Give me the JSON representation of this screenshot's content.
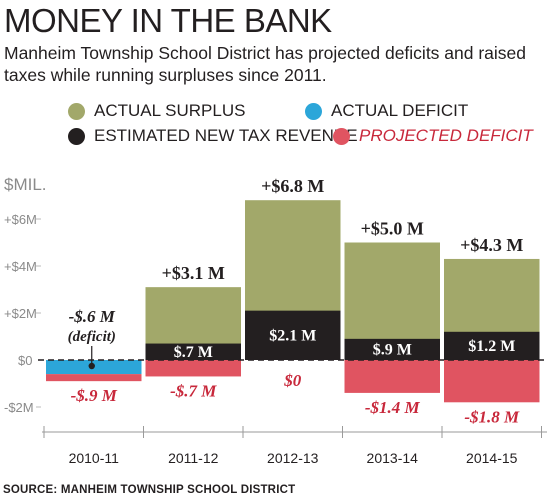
{
  "chart_data": {
    "type": "bar",
    "title": "MONEY IN THE BANK",
    "subtitle": "Manheim Township School District has projected deficits and raised taxes while running surpluses since 2011.",
    "ylabel": "$MIL.",
    "ylim": [
      -2.5,
      7.5
    ],
    "yticks": [
      {
        "value": 6,
        "label": "+$6M"
      },
      {
        "value": 4,
        "label": "+$4M"
      },
      {
        "value": 2,
        "label": "+$2M"
      },
      {
        "value": 0,
        "label": "$0"
      },
      {
        "value": -2,
        "label": "-$2M"
      }
    ],
    "categories": [
      "2010-11",
      "2011-12",
      "2012-13",
      "2013-14",
      "2014-15"
    ],
    "legend": [
      {
        "key": "actual_surplus",
        "label": "ACTUAL SURPLUS",
        "color": "#a2a86a"
      },
      {
        "key": "actual_deficit",
        "label": "ACTUAL DEFICIT",
        "color": "#2ca6d9"
      },
      {
        "key": "estimated_new_tax_revenue",
        "label": "ESTIMATED NEW TAX REVENUE",
        "color": "#231f20"
      },
      {
        "key": "projected_deficit",
        "label": "PROJECTED DEFICIT",
        "color": "#e05461"
      }
    ],
    "bars": [
      {
        "category": "2010-11",
        "actual": -0.6,
        "new_tax_revenue": 0,
        "projected_deficit": -0.9,
        "actual_label": "-$.6 M",
        "actual_note": "(deficit)",
        "tax_label": "",
        "deficit_label": "-$.9 M"
      },
      {
        "category": "2011-12",
        "actual": 3.1,
        "new_tax_revenue": 0.7,
        "projected_deficit": -0.7,
        "actual_label": "+$3.1 M",
        "actual_note": "",
        "tax_label": "$.7 M",
        "deficit_label": "-$.7 M"
      },
      {
        "category": "2012-13",
        "actual": 6.8,
        "new_tax_revenue": 2.1,
        "projected_deficit": 0,
        "actual_label": "+$6.8 M",
        "actual_note": "",
        "tax_label": "$2.1 M",
        "deficit_label": "$0"
      },
      {
        "category": "2013-14",
        "actual": 5.0,
        "new_tax_revenue": 0.9,
        "projected_deficit": -1.4,
        "actual_label": "+$5.0 M",
        "actual_note": "",
        "tax_label": "$.9 M",
        "deficit_label": "-$1.4 M"
      },
      {
        "category": "2014-15",
        "actual": 4.3,
        "new_tax_revenue": 1.2,
        "projected_deficit": -1.8,
        "actual_label": "+$4.3 M",
        "actual_note": "",
        "tax_label": "$1.2 M",
        "deficit_label": "-$1.8 M"
      }
    ]
  },
  "source": "SOURCE: MANHEIM TOWNSHIP SCHOOL DISTRICT",
  "colors": {
    "surplus": "#a2a86a",
    "actual_deficit": "#2ca6d9",
    "tax": "#231f20",
    "projected_deficit": "#e05461",
    "deficit_label_text": "#c8283b",
    "axis_text": "#8a8a8a"
  }
}
